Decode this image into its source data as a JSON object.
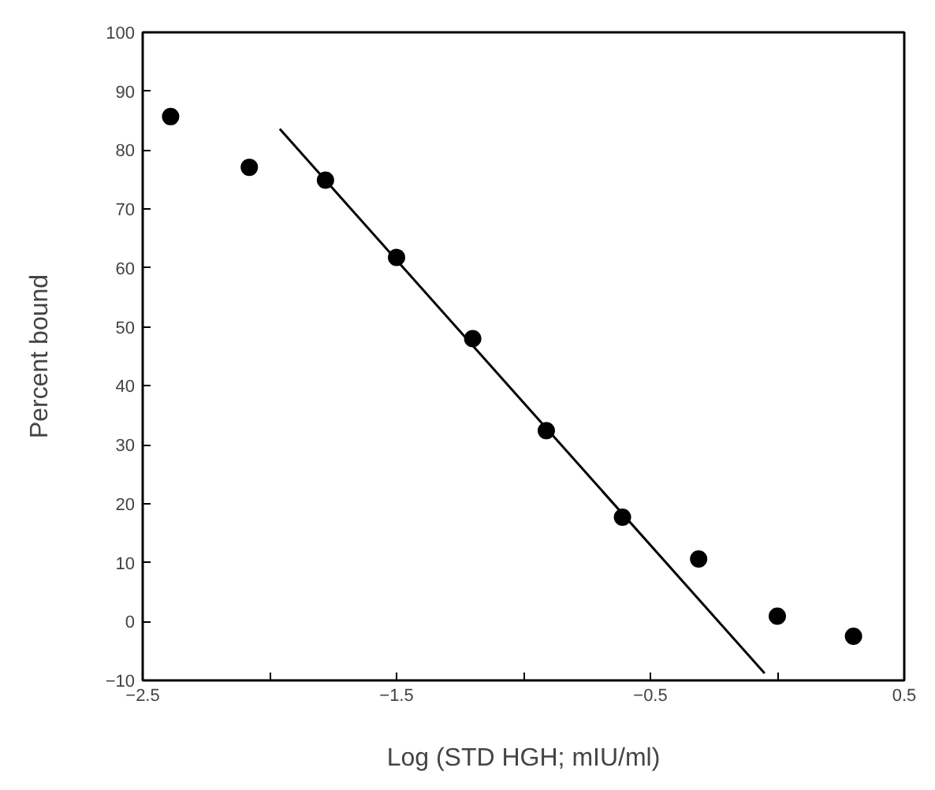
{
  "chart_data": {
    "type": "scatter",
    "xlabel": "Log (STD HGH; mIU/ml)",
    "ylabel": "Percent bound",
    "xlim": [
      -2.5,
      0.5
    ],
    "ylim": [
      -10,
      100
    ],
    "xticks": [
      -2.5,
      {
        "value": -2,
        "label": null
      },
      -1.5,
      {
        "value": -1,
        "label": null
      },
      -0.5,
      {
        "value": 0,
        "label": null
      },
      0.5
    ],
    "yticks": [
      -10,
      0,
      10,
      20,
      30,
      40,
      50,
      60,
      70,
      80,
      90,
      100
    ],
    "grid": false,
    "series": [
      {
        "marker": "circle",
        "color": "#000000",
        "x": [
          -2.39,
          -2.08,
          -1.78,
          -1.5,
          -1.2,
          -0.91,
          -0.61,
          -0.31,
          0.0,
          0.3
        ],
        "values": [
          85.7,
          77.1,
          74.9,
          61.8,
          48.0,
          32.4,
          17.7,
          10.6,
          0.9,
          -2.5
        ]
      },
      {
        "type": "line",
        "marker": "none",
        "color": "#000000",
        "line_style": "solid",
        "x": [
          -1.96,
          -0.05
        ],
        "values": [
          83.6,
          -8.8
        ]
      }
    ]
  }
}
